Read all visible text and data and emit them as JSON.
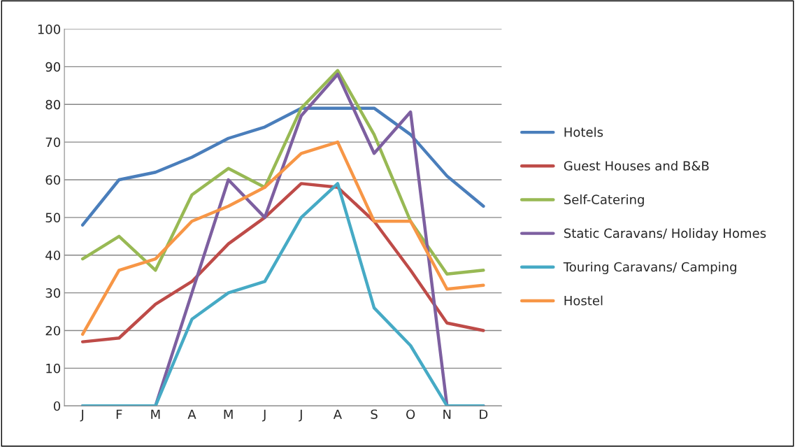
{
  "chart_data": {
    "type": "line",
    "categories": [
      "J",
      "F",
      "M",
      "A",
      "M",
      "J",
      "J",
      "A",
      "S",
      "O",
      "N",
      "D"
    ],
    "series": [
      {
        "name": "Hotels",
        "color": "#4a7ebb",
        "values": [
          48,
          60,
          62,
          66,
          71,
          74,
          79,
          79,
          79,
          72,
          61,
          53
        ]
      },
      {
        "name": "Guest Houses and B&B",
        "color": "#be4b48",
        "values": [
          17,
          18,
          27,
          33,
          43,
          50,
          59,
          58,
          49,
          36,
          22,
          20
        ]
      },
      {
        "name": "Self-Catering",
        "color": "#98b954",
        "values": [
          39,
          45,
          36,
          56,
          63,
          58,
          79,
          89,
          72,
          49,
          35,
          36
        ]
      },
      {
        "name": "Static Caravans/ Holiday Homes",
        "color": "#7d5fa0",
        "values": [
          0,
          0,
          0,
          30,
          60,
          50,
          77,
          88,
          67,
          78,
          0,
          0
        ]
      },
      {
        "name": "Touring Caravans/ Camping",
        "color": "#46aac5",
        "values": [
          0,
          0,
          0,
          23,
          30,
          33,
          50,
          59,
          26,
          16,
          0,
          0
        ]
      },
      {
        "name": "Hostel",
        "color": "#f79646",
        "values": [
          19,
          36,
          39,
          49,
          53,
          58,
          67,
          70,
          49,
          49,
          31,
          32
        ]
      }
    ],
    "ylim": [
      0,
      100
    ],
    "yticks": [
      0,
      10,
      20,
      30,
      40,
      50,
      60,
      70,
      80,
      90,
      100
    ],
    "grid": "y",
    "legend": "right",
    "marker": "none",
    "line_style": "solid"
  }
}
